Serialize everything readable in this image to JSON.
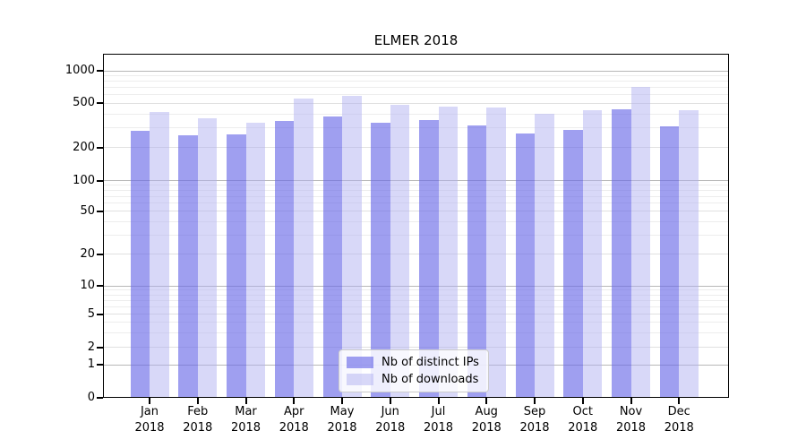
{
  "title": "ELMER 2018",
  "chart_data": {
    "type": "bar",
    "title": "ELMER 2018",
    "categories": [
      "Jan 2018",
      "Feb 2018",
      "Mar 2018",
      "Apr 2018",
      "May 2018",
      "Jun 2018",
      "Jul 2018",
      "Aug 2018",
      "Sep 2018",
      "Oct 2018",
      "Nov 2018",
      "Dec 2018"
    ],
    "series": [
      {
        "name": "Nb of distinct IPs",
        "color": "rgba(103,103,232,0.63)",
        "appearance_hex": "#a0a0ee",
        "values": [
          285,
          258,
          265,
          350,
          384,
          332,
          354,
          317,
          268,
          289,
          446,
          311
        ]
      },
      {
        "name": "Nb of downloads",
        "color": "rgba(174,174,240,0.48)",
        "appearance_hex": "#d8d8f7",
        "values": [
          420,
          370,
          335,
          552,
          590,
          486,
          471,
          462,
          404,
          437,
          715,
          435
        ]
      }
    ],
    "xlabel": "",
    "ylabel": "",
    "yscale": "symlog-like",
    "yticks": [
      0,
      1,
      2,
      5,
      10,
      20,
      50,
      100,
      200,
      500,
      1000
    ],
    "ylim": [
      0,
      1400
    ],
    "grid": true,
    "legend_position": "lower center"
  },
  "x_axis": {
    "year_line": "2018"
  }
}
